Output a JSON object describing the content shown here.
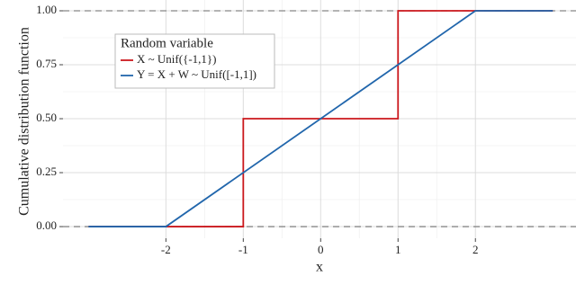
{
  "chart_data": {
    "type": "line",
    "x_label": "x",
    "y_label": "Cumulative distribution function",
    "legend_title": "Random variable",
    "legend": "top-left",
    "xlim": [
      -3.33,
      3.3
    ],
    "ylim": [
      -0.054,
      1.05
    ],
    "xticks": [
      -2,
      -1,
      0,
      1,
      2
    ],
    "yticks": [
      {
        "value": 0,
        "label": "0.00"
      },
      {
        "value": 0.25,
        "label": "0.25"
      },
      {
        "value": 0.5,
        "label": "0.50"
      },
      {
        "value": 0.75,
        "label": "0.75"
      },
      {
        "value": 1,
        "label": "1.00"
      }
    ],
    "grid": true,
    "hlines": [
      0,
      1
    ],
    "series": [
      {
        "name": "X ~ Unif({-1,1})",
        "color": "#cb181d",
        "x": [
          -3,
          -1,
          -1,
          1,
          1,
          3
        ],
        "values": [
          0,
          0,
          0.5,
          0.5,
          1,
          1
        ]
      },
      {
        "name": "Y = X + W ~ Unif([-1,1])",
        "color": "#2166ac",
        "x": [
          -3,
          -2,
          2,
          3
        ],
        "values": [
          0,
          0,
          1,
          1
        ]
      }
    ]
  }
}
